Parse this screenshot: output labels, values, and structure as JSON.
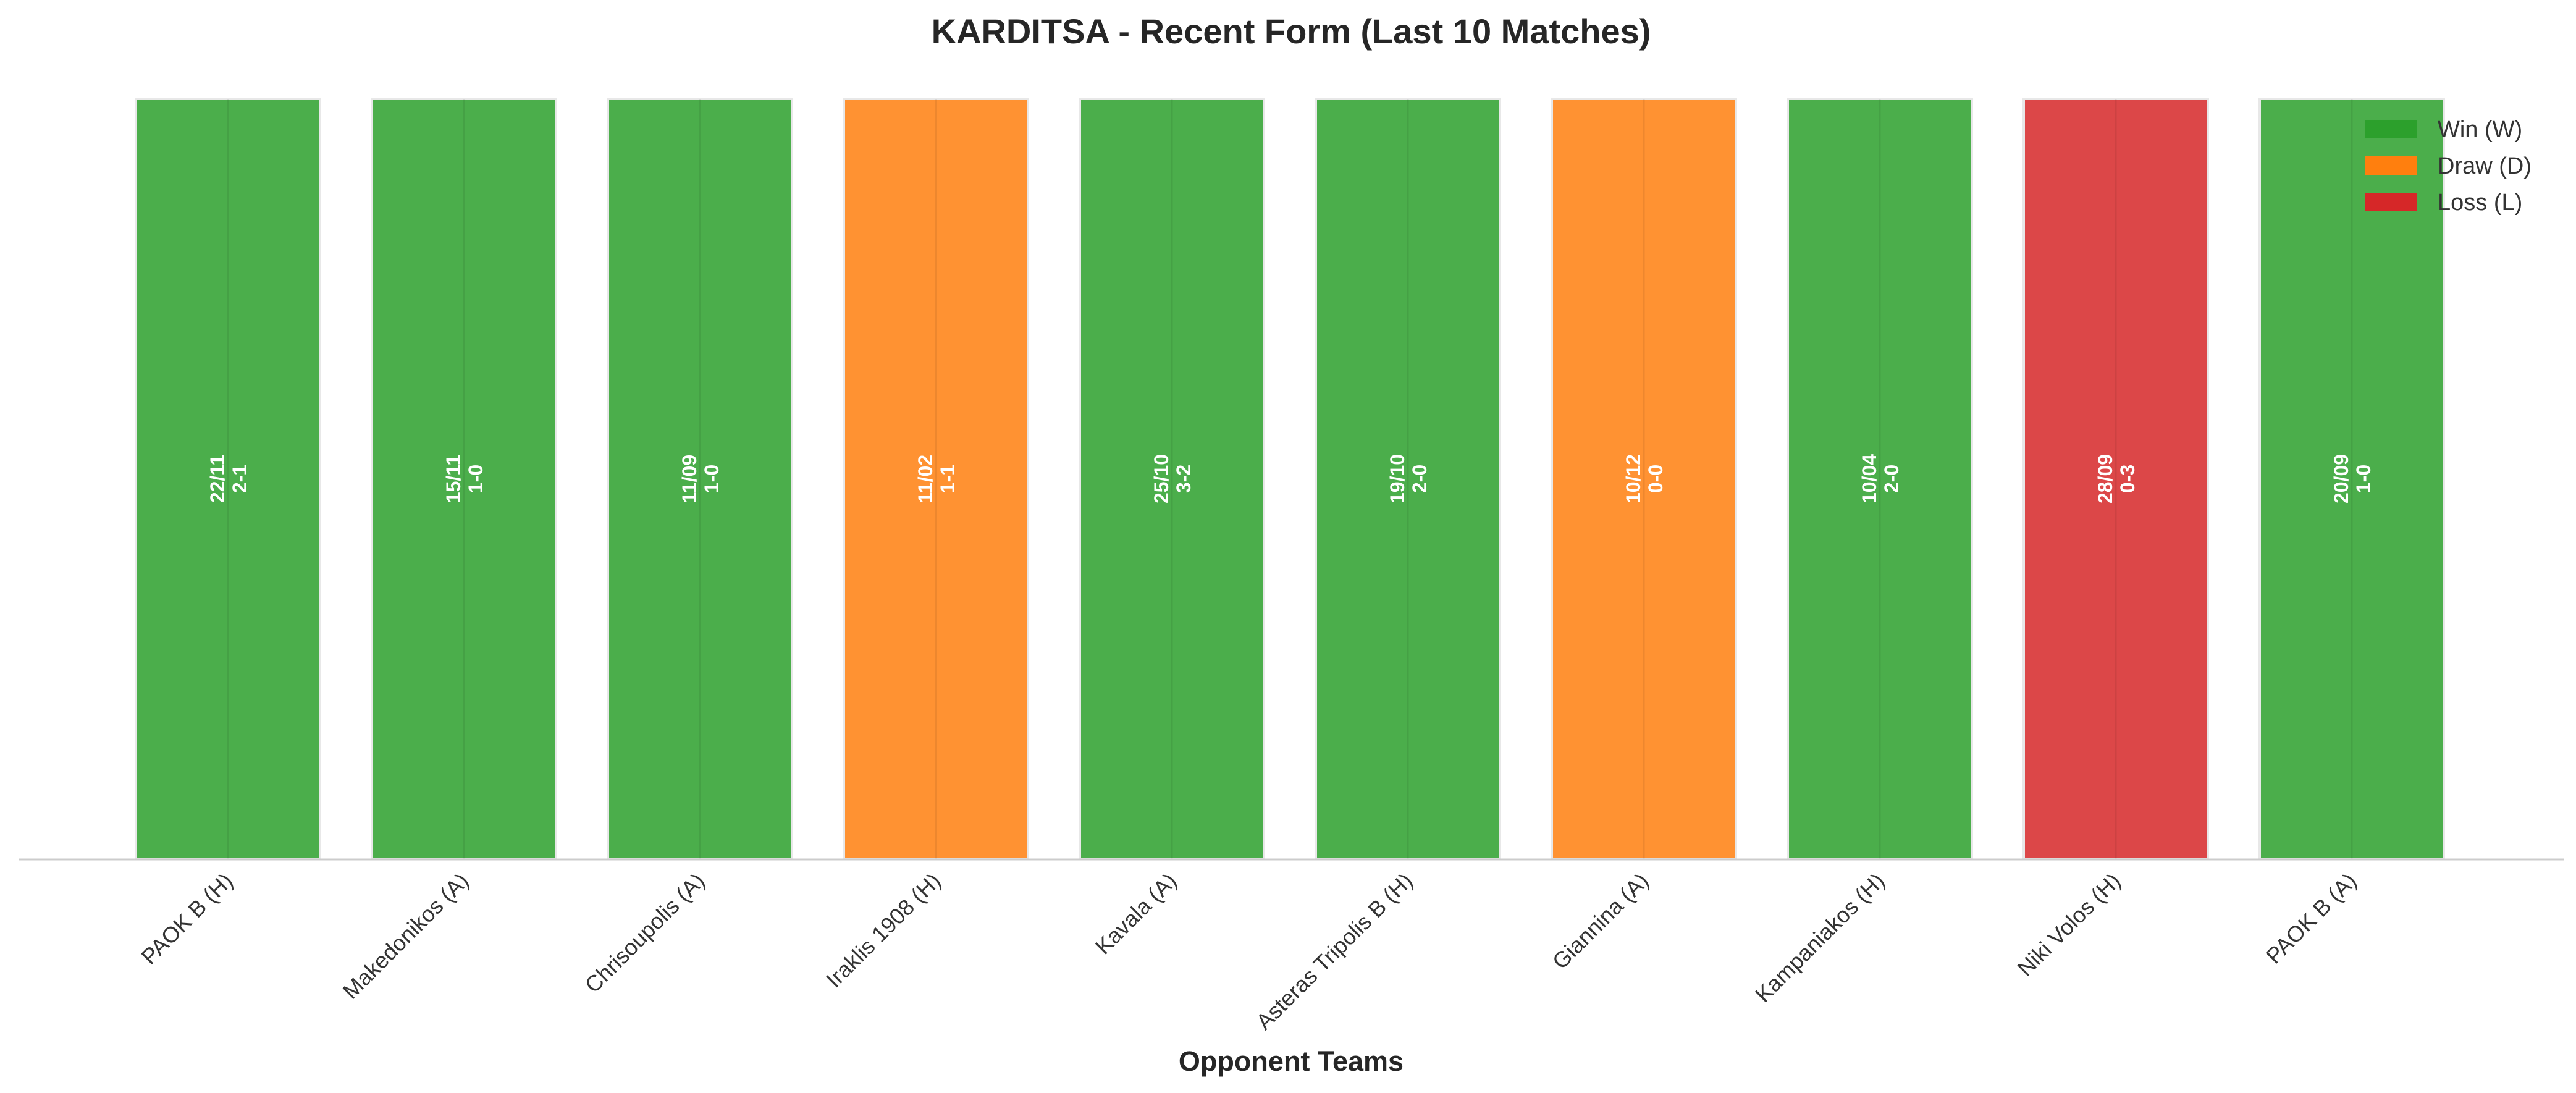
{
  "chart_data": {
    "type": "bar",
    "title": "KARDITSA - Recent Form (Last 10 Matches)",
    "xlabel": "Opponent Teams",
    "ylabel": "",
    "ylim": [
      0,
      1
    ],
    "grid": false,
    "legend_position": "top-right",
    "categories": [
      "PAOK B (H)",
      "Makedonikos (A)",
      "Chrisoupolis (A)",
      "Iraklis 1908 (H)",
      "Kavala (A)",
      "Asteras Tripolis B (H)",
      "Giannina (A)",
      "Kampaniakos (H)",
      "Niki Volos (H)",
      "PAOK B (A)"
    ],
    "values": [
      1,
      1,
      1,
      1,
      1,
      1,
      1,
      1,
      1,
      1
    ],
    "results": [
      "W",
      "W",
      "W",
      "D",
      "W",
      "W",
      "D",
      "W",
      "L",
      "W"
    ],
    "dates": [
      "22/11",
      "15/11",
      "11/09",
      "11/02",
      "25/10",
      "19/10",
      "10/12",
      "10/04",
      "28/09",
      "20/09"
    ],
    "scores": [
      "2-1",
      "1-0",
      "1-0",
      "1-1",
      "3-2",
      "2-0",
      "0-0",
      "2-0",
      "0-3",
      "1-0"
    ],
    "legend": [
      {
        "key": "W",
        "label": "Win (W)",
        "color": "#2ca02c"
      },
      {
        "key": "D",
        "label": "Draw (D)",
        "color": "#ff7f0e"
      },
      {
        "key": "L",
        "label": "Loss (L)",
        "color": "#d62728"
      }
    ],
    "colors": {
      "W": "#2ca02c",
      "D": "#ff7f0e",
      "L": "#d62728"
    }
  }
}
